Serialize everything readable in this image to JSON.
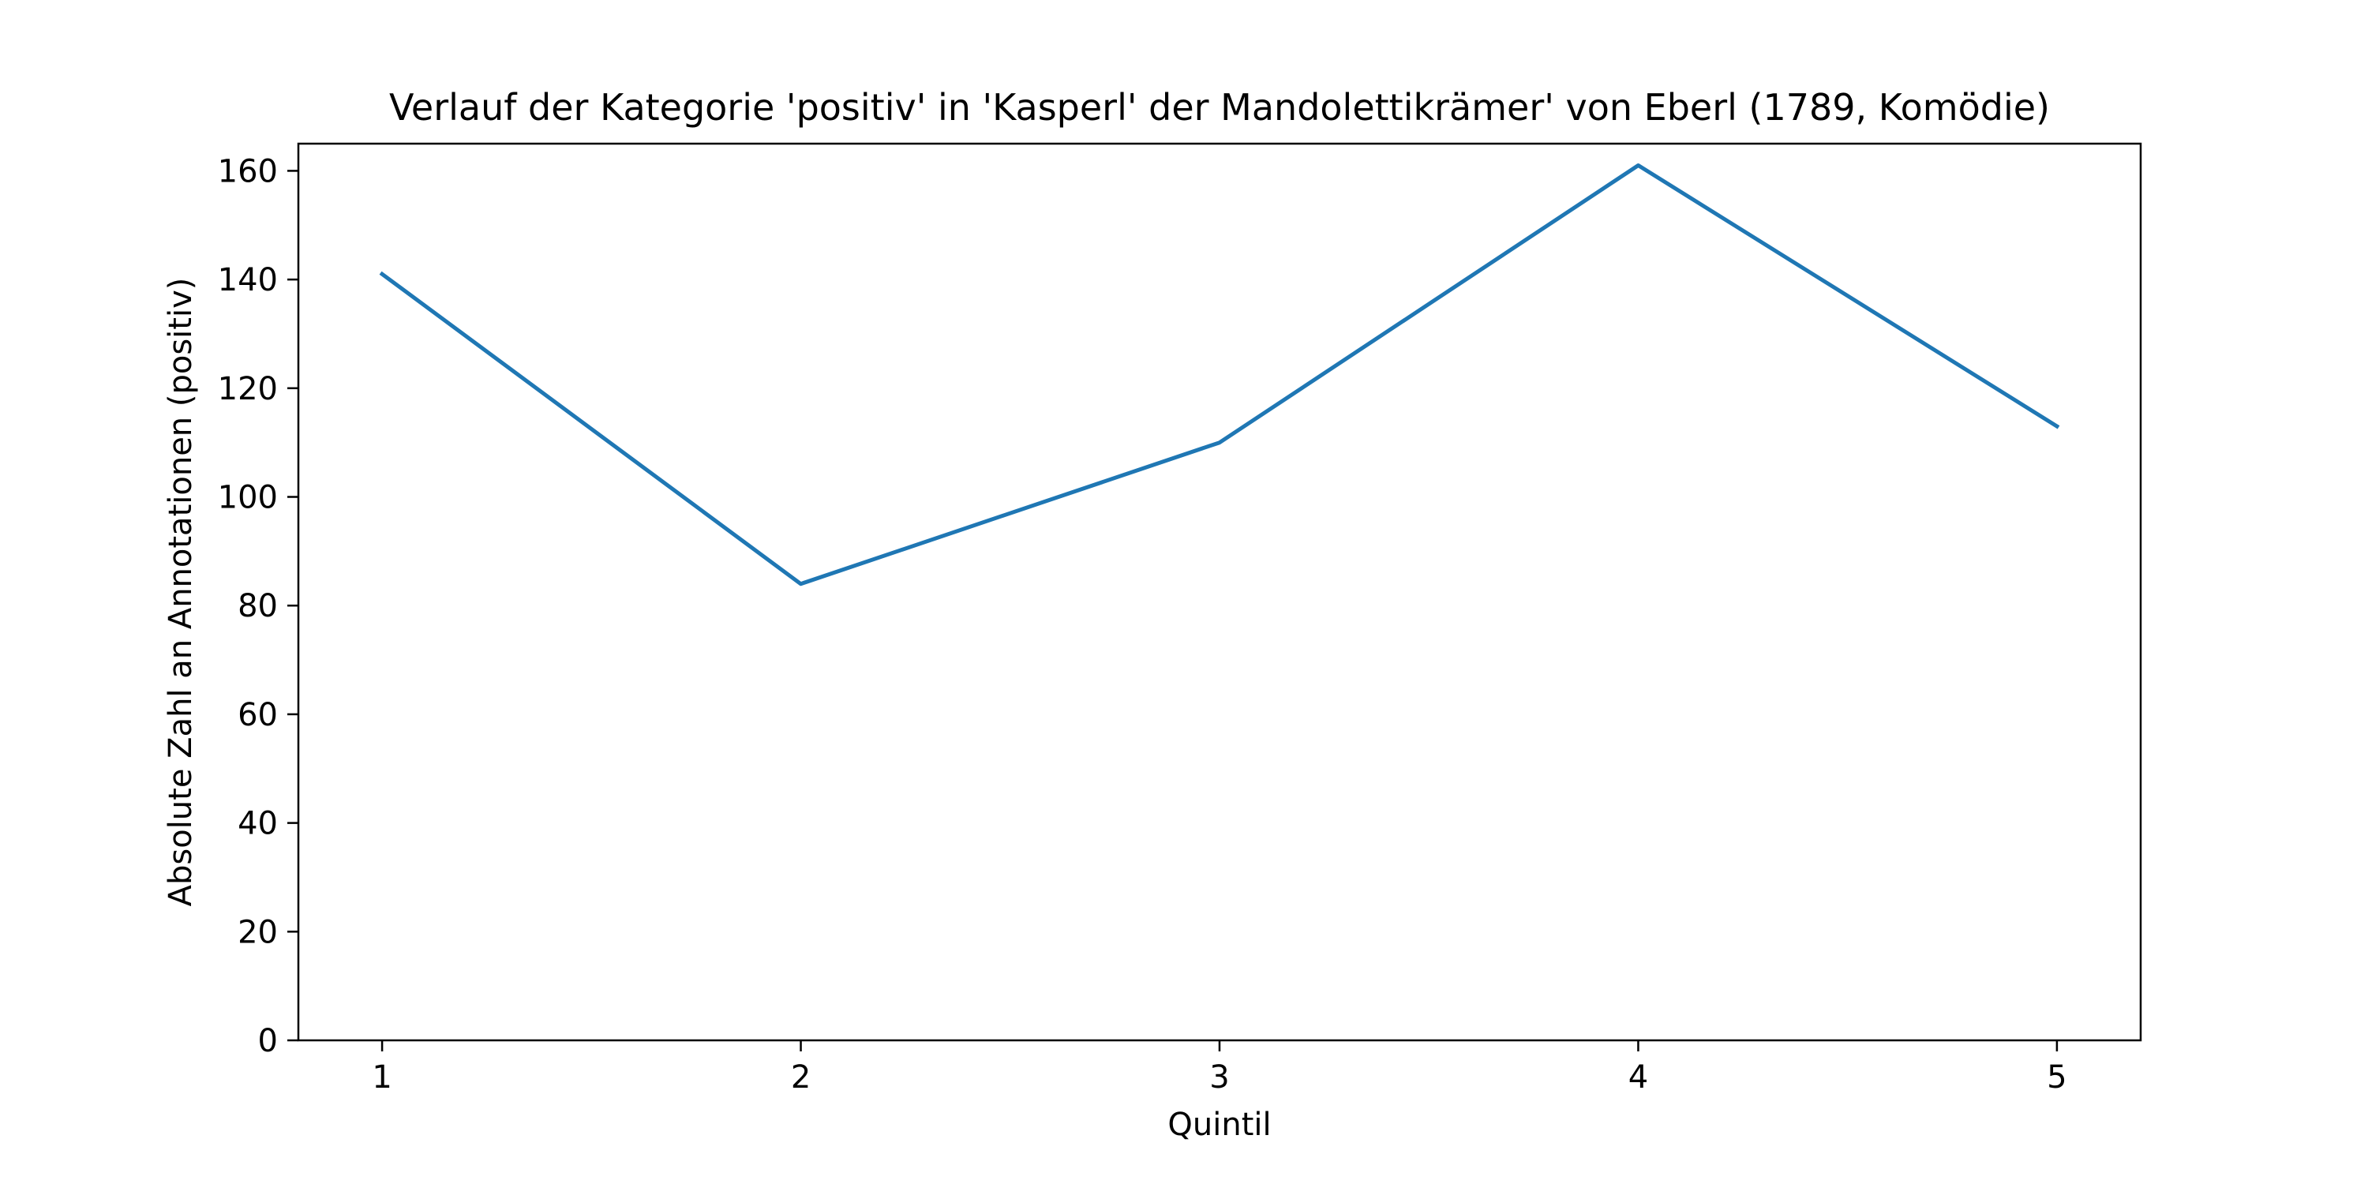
{
  "chart_data": {
    "type": "line",
    "title": "Verlauf der Kategorie 'positiv' in 'Kasperl' der Mandolettikrämer' von Eberl (1789, Komödie)",
    "xlabel": "Quintil",
    "ylabel": "Absolute Zahl an Annotationen (positiv)",
    "x": [
      1,
      2,
      3,
      4,
      5
    ],
    "x_tick_labels": [
      "1",
      "2",
      "3",
      "4",
      "5"
    ],
    "xlim": [
      0.8,
      5.2
    ],
    "ylim": [
      0,
      165
    ],
    "y_ticks": [
      0,
      20,
      40,
      60,
      80,
      100,
      120,
      140,
      160
    ],
    "y_tick_labels": [
      "0",
      "20",
      "40",
      "60",
      "80",
      "100",
      "120",
      "140",
      "160"
    ],
    "grid": false,
    "series": [
      {
        "values": [
          141,
          84,
          110,
          161,
          113
        ],
        "color": "#1f77b4"
      }
    ]
  }
}
